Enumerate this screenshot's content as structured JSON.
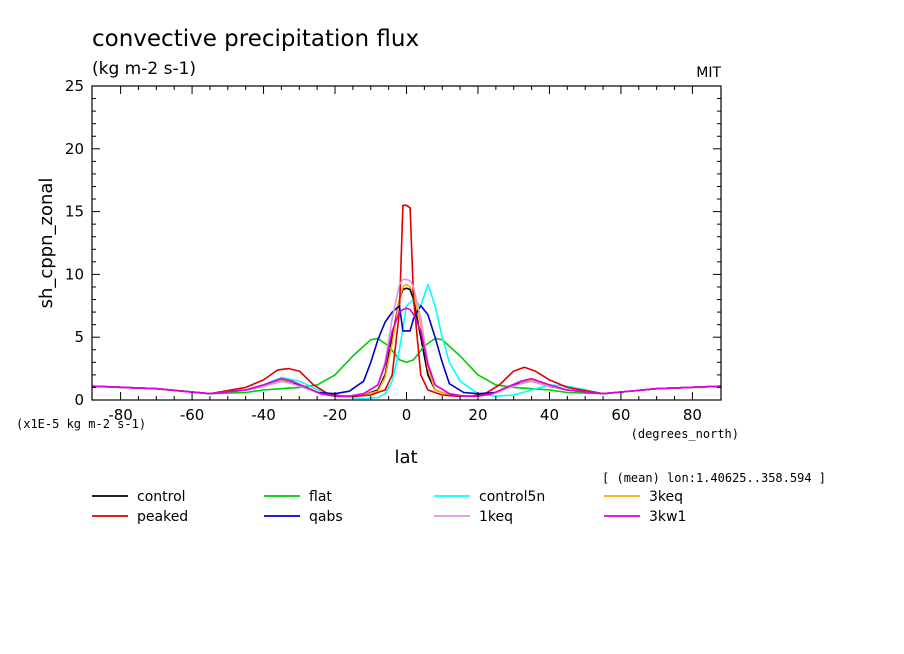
{
  "chart_data": {
    "type": "line",
    "title": "convective precipitation flux",
    "units": "(kg m-2 s-1)",
    "source": "MIT",
    "ylabel": "sh_cppn_zonal",
    "xlabel": "lat",
    "x_units": "(degrees_north)",
    "y_scale_note": "(x1E-5 kg m-2 s-1)",
    "subset_note": "[ (mean) lon:1.40625..358.594 ]",
    "xlim": [
      -88,
      88
    ],
    "ylim": [
      0,
      25
    ],
    "x_ticks": [
      -80,
      -60,
      -40,
      -20,
      0,
      20,
      40,
      60,
      80
    ],
    "y_ticks": [
      0,
      5,
      10,
      15,
      20,
      25
    ],
    "x_tick_labels": [
      "-80",
      "-60",
      "-40",
      "-20",
      "0",
      "20",
      "40",
      "60",
      "80"
    ],
    "y_tick_labels": [
      "0",
      "5",
      "10",
      "15",
      "20",
      "25"
    ],
    "series": [
      {
        "name": "control",
        "color": "#000000",
        "x": [
          -88,
          -70,
          -55,
          -45,
          -40,
          -35,
          -32,
          -28,
          -24,
          -20,
          -16,
          -12,
          -8,
          -6,
          -4,
          -2,
          -1,
          0,
          1,
          2,
          4,
          6,
          8,
          12,
          16,
          20,
          24,
          28,
          32,
          35,
          40,
          45,
          55,
          70,
          88
        ],
        "y": [
          1.1,
          0.9,
          0.5,
          0.8,
          1.1,
          1.6,
          1.4,
          1.0,
          0.5,
          0.3,
          0.3,
          0.4,
          0.8,
          2.0,
          5.0,
          8.0,
          8.8,
          8.9,
          8.8,
          8.0,
          5.0,
          2.0,
          0.8,
          0.4,
          0.3,
          0.3,
          0.5,
          1.0,
          1.4,
          1.6,
          1.1,
          0.8,
          0.5,
          0.9,
          1.1
        ]
      },
      {
        "name": "flat",
        "color": "#00cc00",
        "x": [
          -88,
          -70,
          -55,
          -45,
          -40,
          -35,
          -30,
          -25,
          -20,
          -15,
          -10,
          -8,
          -5,
          -2,
          0,
          2,
          5,
          8,
          10,
          15,
          20,
          25,
          30,
          35,
          40,
          45,
          55,
          70,
          88
        ],
        "y": [
          1.1,
          0.9,
          0.5,
          0.6,
          0.8,
          0.9,
          1.0,
          1.2,
          2.0,
          3.5,
          4.8,
          4.9,
          4.3,
          3.2,
          3.0,
          3.2,
          4.3,
          4.9,
          4.8,
          3.5,
          2.0,
          1.2,
          1.0,
          0.9,
          0.8,
          0.6,
          0.5,
          0.9,
          1.1
        ]
      },
      {
        "name": "control5n",
        "color": "#00ffff",
        "x": [
          -88,
          -70,
          -55,
          -45,
          -40,
          -35,
          -30,
          -24,
          -20,
          -16,
          -12,
          -8,
          -6,
          -4,
          -2,
          0,
          2,
          4,
          6,
          8,
          10,
          12,
          15,
          20,
          25,
          30,
          35,
          40,
          45,
          55,
          70,
          88
        ],
        "y": [
          1.1,
          0.9,
          0.5,
          0.8,
          1.2,
          1.8,
          1.5,
          0.7,
          0.3,
          0.2,
          0.1,
          0.2,
          0.5,
          1.5,
          4.0,
          7.5,
          8.0,
          7.5,
          9.2,
          7.5,
          5.0,
          3.0,
          1.5,
          0.5,
          0.3,
          0.4,
          0.8,
          1.2,
          1.1,
          0.5,
          0.9,
          1.1
        ]
      },
      {
        "name": "3keq",
        "color": "#ffaa00",
        "x": [
          -88,
          -70,
          -55,
          -45,
          -40,
          -35,
          -32,
          -28,
          -24,
          -20,
          -16,
          -12,
          -8,
          -6,
          -4,
          -2,
          -1,
          0,
          1,
          2,
          4,
          6,
          8,
          12,
          16,
          20,
          24,
          28,
          32,
          35,
          40,
          45,
          55,
          70,
          88
        ],
        "y": [
          1.1,
          0.9,
          0.5,
          0.8,
          1.1,
          1.6,
          1.4,
          1.0,
          0.5,
          0.3,
          0.3,
          0.4,
          0.7,
          1.8,
          4.5,
          8.0,
          9.0,
          9.2,
          9.0,
          8.5,
          6.0,
          2.5,
          0.8,
          0.4,
          0.3,
          0.3,
          0.5,
          1.0,
          1.4,
          1.6,
          1.1,
          0.8,
          0.5,
          0.9,
          1.1
        ]
      },
      {
        "name": "peaked",
        "color": "#dd0000",
        "x": [
          -88,
          -70,
          -55,
          -45,
          -40,
          -36,
          -33,
          -30,
          -26,
          -22,
          -18,
          -14,
          -10,
          -6,
          -4,
          -2,
          -1,
          0,
          1,
          2,
          4,
          6,
          10,
          14,
          18,
          22,
          26,
          30,
          33,
          36,
          40,
          45,
          55,
          70,
          88
        ],
        "y": [
          1.1,
          0.9,
          0.5,
          1.0,
          1.6,
          2.4,
          2.5,
          2.3,
          1.2,
          0.5,
          0.3,
          0.3,
          0.4,
          0.8,
          2.0,
          7.0,
          15.5,
          15.5,
          15.3,
          8.0,
          2.0,
          0.8,
          0.4,
          0.3,
          0.3,
          0.5,
          1.2,
          2.3,
          2.6,
          2.3,
          1.6,
          1.0,
          0.5,
          0.9,
          1.1
        ]
      },
      {
        "name": "qabs",
        "color": "#0000cc",
        "x": [
          -88,
          -70,
          -55,
          -45,
          -40,
          -35,
          -30,
          -25,
          -20,
          -16,
          -12,
          -10,
          -8,
          -6,
          -4,
          -2,
          -1,
          0,
          1,
          2,
          4,
          6,
          8,
          10,
          12,
          16,
          20,
          25,
          30,
          35,
          40,
          45,
          55,
          70,
          88
        ],
        "y": [
          1.1,
          0.9,
          0.5,
          0.8,
          1.1,
          1.5,
          1.2,
          0.6,
          0.5,
          0.7,
          1.5,
          3.0,
          4.8,
          6.2,
          7.0,
          7.5,
          5.5,
          5.5,
          5.5,
          6.5,
          7.5,
          6.8,
          5.0,
          3.0,
          1.3,
          0.6,
          0.5,
          0.6,
          1.2,
          1.5,
          1.1,
          0.8,
          0.5,
          0.9,
          1.1
        ]
      },
      {
        "name": "1keq",
        "color": "#dd99dd",
        "x": [
          -88,
          -70,
          -55,
          -45,
          -40,
          -35,
          -32,
          -28,
          -24,
          -20,
          -16,
          -12,
          -8,
          -6,
          -4,
          -2,
          -1,
          0,
          1,
          2,
          4,
          6,
          8,
          12,
          16,
          20,
          24,
          28,
          32,
          35,
          40,
          45,
          55,
          70,
          88
        ],
        "y": [
          1.1,
          0.9,
          0.5,
          0.8,
          1.1,
          1.5,
          1.3,
          0.9,
          0.5,
          0.3,
          0.3,
          0.5,
          1.2,
          3.0,
          6.5,
          9.2,
          9.6,
          9.6,
          9.5,
          9.0,
          6.5,
          3.0,
          1.2,
          0.5,
          0.3,
          0.3,
          0.5,
          0.9,
          1.3,
          1.5,
          1.1,
          0.8,
          0.5,
          0.9,
          1.1
        ]
      },
      {
        "name": "3kw1",
        "color": "#dd00dd",
        "x": [
          -88,
          -70,
          -55,
          -45,
          -40,
          -35,
          -32,
          -28,
          -24,
          -20,
          -16,
          -12,
          -8,
          -6,
          -4,
          -2,
          -1,
          0,
          1,
          2,
          4,
          6,
          8,
          12,
          16,
          20,
          24,
          28,
          32,
          35,
          40,
          45,
          55,
          70,
          88
        ],
        "y": [
          1.1,
          0.9,
          0.5,
          0.8,
          1.2,
          1.7,
          1.5,
          1.0,
          0.5,
          0.3,
          0.3,
          0.5,
          1.2,
          2.8,
          5.5,
          7.0,
          7.2,
          7.3,
          7.2,
          6.8,
          5.5,
          2.8,
          1.2,
          0.5,
          0.3,
          0.3,
          0.5,
          1.0,
          1.5,
          1.7,
          1.2,
          0.8,
          0.5,
          0.9,
          1.1
        ]
      }
    ]
  }
}
